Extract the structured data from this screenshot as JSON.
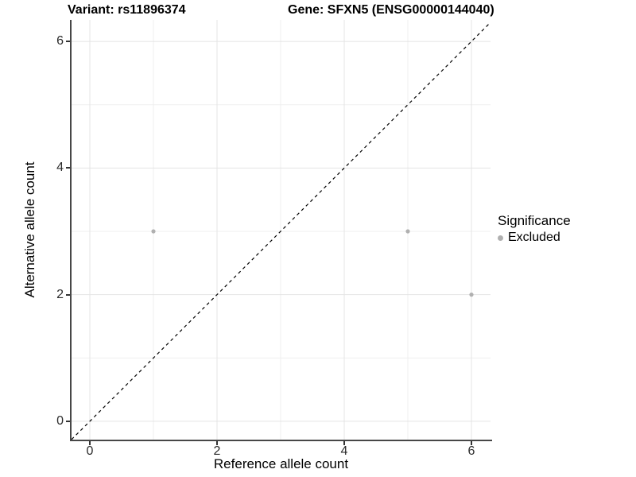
{
  "chart_data": {
    "type": "scatter",
    "title_left": "Variant: rs11896374",
    "title_right": "Gene: SFXN5 (ENSG00000144040)",
    "xlabel": "Reference allele count",
    "ylabel": "Alternative allele count",
    "x_breaks": [
      0,
      2,
      4,
      6
    ],
    "y_breaks": [
      0,
      2,
      4,
      6
    ],
    "x_minor_breaks": [
      1,
      3,
      5
    ],
    "y_minor_breaks": [
      1,
      3,
      5
    ],
    "xlim": [
      -0.2875,
      6.3
    ],
    "ylim": [
      -0.29,
      6.34
    ],
    "grid": {
      "major_color": "#e4e4e4",
      "minor_color": "#efefef",
      "background": "#ffffff"
    },
    "identity_line": {
      "style": "dashed",
      "color": "#000000"
    },
    "series": [
      {
        "name": "Excluded",
        "color": "#b0b0b0",
        "points": [
          {
            "x": 1,
            "y": 3
          },
          {
            "x": 5,
            "y": 3
          },
          {
            "x": 6,
            "y": 2
          }
        ]
      }
    ],
    "legend": {
      "title": "Significance",
      "position": "right",
      "items": [
        {
          "label": "Excluded",
          "color": "#b0b0b0"
        }
      ]
    }
  }
}
